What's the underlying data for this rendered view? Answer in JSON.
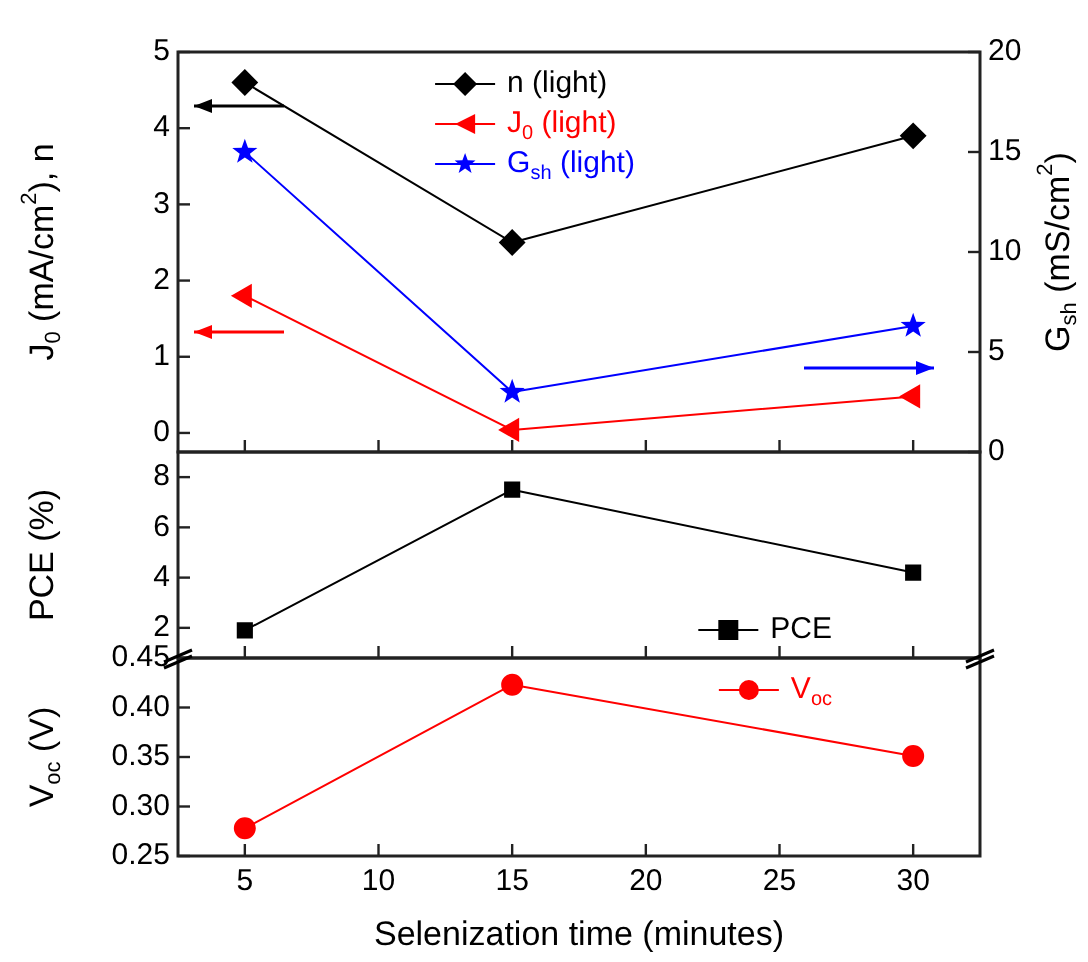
{
  "chart_data": [
    {
      "type": "line",
      "ylabel": "J$_{0}$ (mA/cm$^{2}$), n",
      "y2label": "G$_{sh}$ (mS/cm$^{2}$)",
      "x": [
        5,
        15,
        30
      ],
      "xlim": [
        2.5,
        32.5
      ],
      "xticks": [
        5,
        10,
        15,
        20,
        25,
        30
      ],
      "ylim": [
        -0.25,
        5
      ],
      "yticks": [
        0,
        1,
        2,
        3,
        4,
        5
      ],
      "y2lim": [
        0,
        20
      ],
      "y2ticks": [
        0,
        5,
        10,
        15,
        20
      ],
      "tick_labels": "y",
      "legend": "top",
      "grid": false,
      "series": [
        {
          "name": "n (light)",
          "color": "#000000",
          "marker": "diamond",
          "values": [
            4.6,
            2.5,
            3.9
          ]
        },
        {
          "name": "J$_{0}$ (light)",
          "color": "#ff0000",
          "marker": "triangle",
          "values": [
            1.8,
            0.04,
            0.48
          ]
        },
        {
          "name": "G$_{sh}$ (light)",
          "color": "#0000ff",
          "marker": "star",
          "axis": "y2",
          "values": [
            15,
            3.0,
            6.3
          ]
        }
      ]
    },
    {
      "type": "line",
      "ylabel": "PCE (%)",
      "x": [
        5,
        15,
        30
      ],
      "xlim": [
        2.5,
        32.5
      ],
      "xticks": [
        5,
        10,
        15,
        20,
        25,
        30
      ],
      "ylim": [
        0.8,
        9
      ],
      "yticks": [
        2,
        4,
        6,
        8
      ],
      "tick_labels": "y",
      "legend": "bottom right",
      "grid": false,
      "series": [
        {
          "name": "PCE",
          "color": "#000000",
          "marker": "square",
          "values": [
            1.9,
            7.5,
            4.2
          ]
        }
      ]
    },
    {
      "type": "line",
      "ylabel": "V$_{oc}$ (V)",
      "xlabel": "Selenization time (minutes)",
      "x": [
        5,
        15,
        30
      ],
      "xlim": [
        2.5,
        32.5
      ],
      "xticks": [
        5,
        10,
        15,
        20,
        25,
        30
      ],
      "ylim": [
        0.25,
        0.45
      ],
      "yticks": [
        {
          "value": 0.25,
          "label": "0.25"
        },
        {
          "value": 0.3,
          "label": "0.30"
        },
        {
          "value": 0.35,
          "label": "0.35"
        },
        {
          "value": 0.4,
          "label": "0.40"
        },
        {
          "value": 0.45,
          "label": "0.45"
        }
      ],
      "legend": "top right",
      "grid": false,
      "series": [
        {
          "name": "V$_{oc}$",
          "color": "#ff0000",
          "marker": "circle",
          "values": [
            0.278,
            0.423,
            0.351
          ]
        }
      ]
    }
  ]
}
